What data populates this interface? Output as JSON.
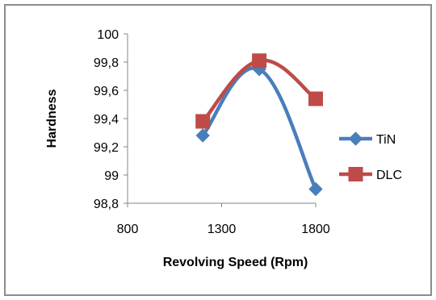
{
  "chart_data": {
    "type": "line",
    "title": "",
    "xlabel": "Revolving Speed (Rpm)",
    "ylabel": "Hardness",
    "xlim": [
      800,
      1800
    ],
    "ylim": [
      98.8,
      100
    ],
    "x_ticks": [
      800,
      1300,
      1800
    ],
    "x_tick_labels": [
      "800",
      "1300",
      "1800"
    ],
    "y_ticks": [
      98.8,
      99,
      99.2,
      99.4,
      99.6,
      99.8,
      100
    ],
    "y_tick_labels": [
      "98,8",
      "99",
      "99,2",
      "99,4",
      "99,6",
      "99,8",
      "100"
    ],
    "grid": false,
    "legend_position": "right",
    "series": [
      {
        "name": "TiN",
        "color": "#4a7ebb",
        "marker": "diamond",
        "smooth": true,
        "x": [
          1200,
          1500,
          1800
        ],
        "y": [
          99.28,
          99.75,
          98.9
        ]
      },
      {
        "name": "DLC",
        "color": "#be4b48",
        "marker": "square",
        "smooth": true,
        "x": [
          1200,
          1500,
          1800
        ],
        "y": [
          99.38,
          99.81,
          99.54
        ]
      }
    ]
  }
}
